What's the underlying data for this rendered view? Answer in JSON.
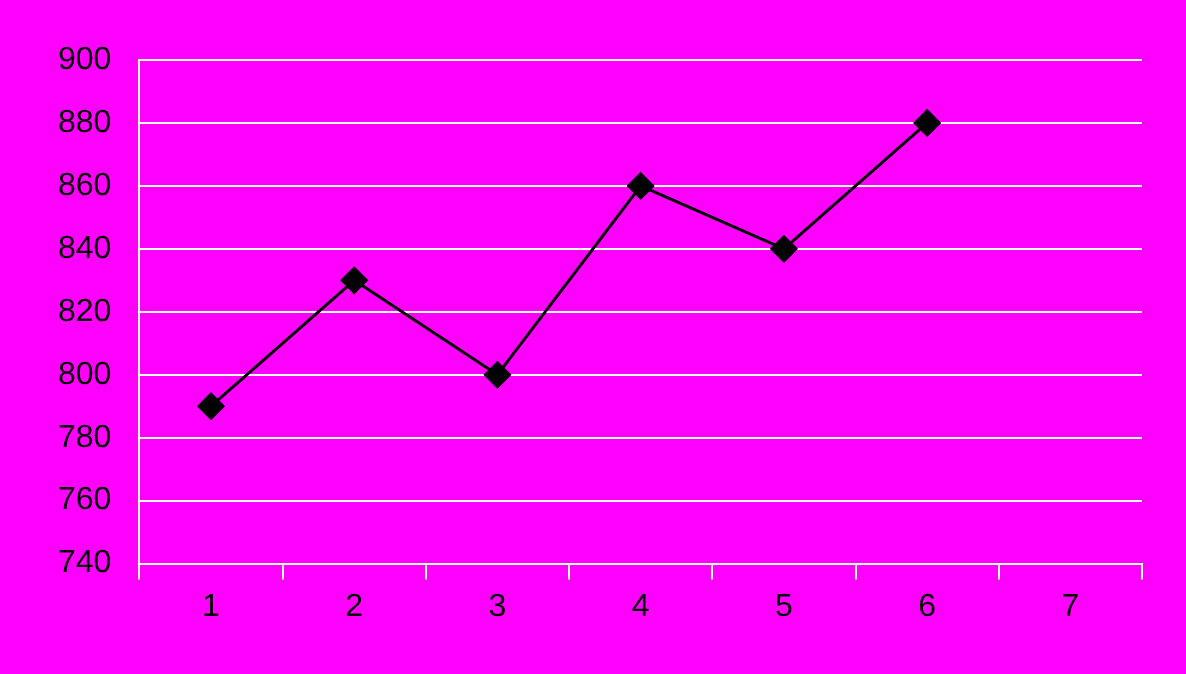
{
  "chart_data": {
    "type": "line",
    "categories": [
      "1",
      "2",
      "3",
      "4",
      "5",
      "6",
      "7"
    ],
    "series": [
      {
        "color": "#000000",
        "values": [
          790,
          830,
          800,
          860,
          840,
          880,
          null
        ]
      }
    ],
    "ylim": [
      740,
      900
    ],
    "yticks": [
      740,
      760,
      780,
      800,
      820,
      840,
      860,
      880,
      900
    ],
    "grid": "y",
    "legend": false,
    "marker": "diamond",
    "line_style": "solid"
  }
}
